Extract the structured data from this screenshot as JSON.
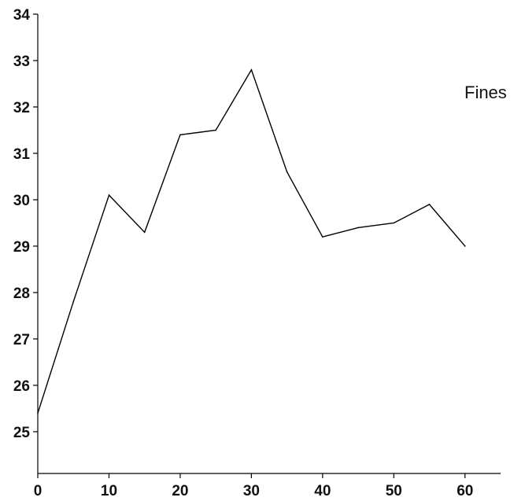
{
  "chart_data": {
    "type": "line",
    "title": "",
    "xlabel": "",
    "ylabel": "",
    "xlim": [
      0,
      65
    ],
    "ylim": [
      25,
      34
    ],
    "x_ticks": [
      0,
      10,
      20,
      30,
      40,
      50,
      60
    ],
    "y_ticks": [
      25,
      26,
      27,
      28,
      29,
      30,
      31,
      32,
      33,
      34
    ],
    "grid": false,
    "series": [
      {
        "name": "Fines",
        "color": "#000000",
        "x": [
          0,
          5,
          10,
          15,
          20,
          25,
          30,
          35,
          40,
          45,
          50,
          55,
          60
        ],
        "y": [
          25.4,
          27.8,
          30.1,
          29.3,
          31.4,
          31.5,
          32.8,
          30.6,
          29.2,
          29.4,
          29.5,
          29.9,
          29.0
        ]
      }
    ],
    "annotations": [
      {
        "text": "Fines",
        "position": "right"
      }
    ]
  }
}
